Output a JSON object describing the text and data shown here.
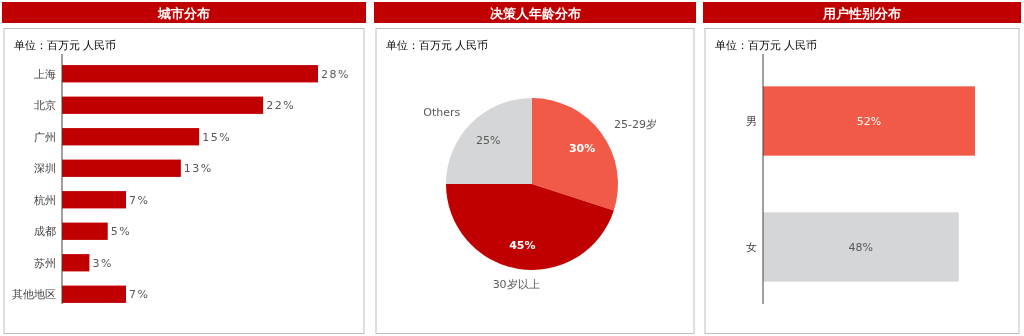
{
  "chart_data": [
    {
      "type": "bar",
      "orientation": "horizontal",
      "title": "城市分布",
      "subtitle": "单位：百万元 人民币",
      "categories": [
        "上海",
        "北京",
        "广州",
        "深圳",
        "杭州",
        "成都",
        "苏州",
        "其他地区"
      ],
      "values": [
        28,
        22,
        15,
        13,
        7,
        5,
        3,
        7
      ],
      "color": "#c00000",
      "value_labels": [
        "28%",
        "22%",
        "15%",
        "13%",
        "7%",
        "5%",
        "3%",
        "7%"
      ]
    },
    {
      "type": "pie",
      "title": "决策人年龄分布",
      "subtitle": "单位：百万元 人民币",
      "categories": [
        "25-29岁",
        "30岁以上",
        "Others"
      ],
      "values": [
        30,
        45,
        25
      ],
      "colors": [
        "#f05a46",
        "#c00000",
        "#d5d6d8"
      ],
      "value_labels": [
        "30%",
        "45%",
        "25%"
      ]
    },
    {
      "type": "bar",
      "orientation": "horizontal",
      "title": "用户性别分布",
      "subtitle": "单位：百万元 人民币",
      "categories": [
        "男",
        "女"
      ],
      "values": [
        52,
        48
      ],
      "colors": [
        "#f05a46",
        "#d5d6d8"
      ],
      "value_labels": [
        "52%",
        "48%"
      ]
    }
  ]
}
